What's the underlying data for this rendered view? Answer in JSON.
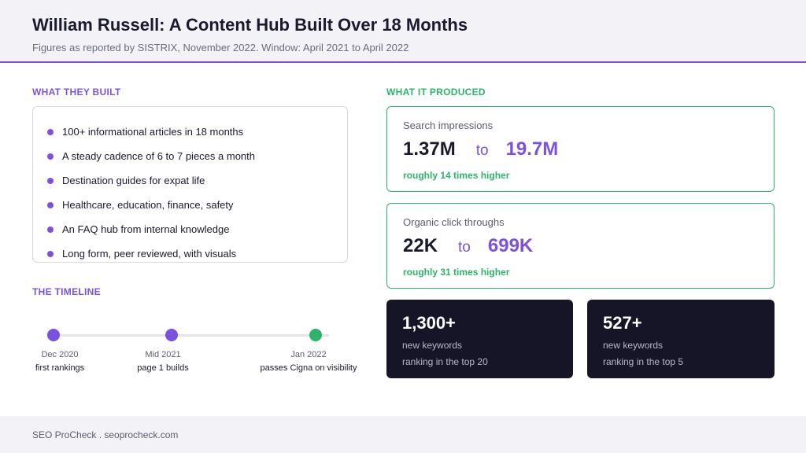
{
  "header": {
    "title": "William Russell: A Content Hub Built Over 18 Months",
    "subtitle": "Figures as reported by SISTRIX, November 2022. Window: April 2021 to April 2022"
  },
  "built": {
    "label": "WHAT THEY BUILT",
    "items": [
      "100+ informational articles in 18 months",
      "A steady cadence of 6 to 7 pieces a month",
      "Destination guides for expat life",
      "Healthcare, education, finance, safety",
      "An FAQ hub from internal knowledge",
      "Long form, peer reviewed, with visuals"
    ]
  },
  "timeline": {
    "label": "THE TIMELINE",
    "events": [
      {
        "date": "Dec 2020",
        "caption": "first rankings",
        "color": "#7b52e0"
      },
      {
        "date": "Mid 2021",
        "caption": "page 1 builds",
        "color": "#7b52e0"
      },
      {
        "date": "Jan 2022",
        "caption": "passes Cigna on visibility",
        "color": "#2ab56b"
      }
    ]
  },
  "produced": {
    "label": "WHAT IT PRODUCED",
    "impressions": {
      "label": "Search impressions",
      "from": "1.37M",
      "to_word": "to",
      "to": "19.7M",
      "note": "roughly 14 times higher"
    },
    "clicks": {
      "label": "Organic click throughs",
      "from": "22K",
      "to_word": "to",
      "to": "699K",
      "note": "roughly 31 times higher"
    },
    "top20": {
      "value": "1,300+",
      "line1": "new keywords",
      "line2": "ranking in the top 20"
    },
    "top5": {
      "value": "527+",
      "line1": "new keywords",
      "line2": "ranking in the top 5"
    }
  },
  "footer": {
    "text": "SEO ProCheck . seoprocheck.com"
  },
  "colors": {
    "accent_purple": "#7b52e0",
    "accent_green": "#2ab56b",
    "dark_card": "#161527"
  }
}
